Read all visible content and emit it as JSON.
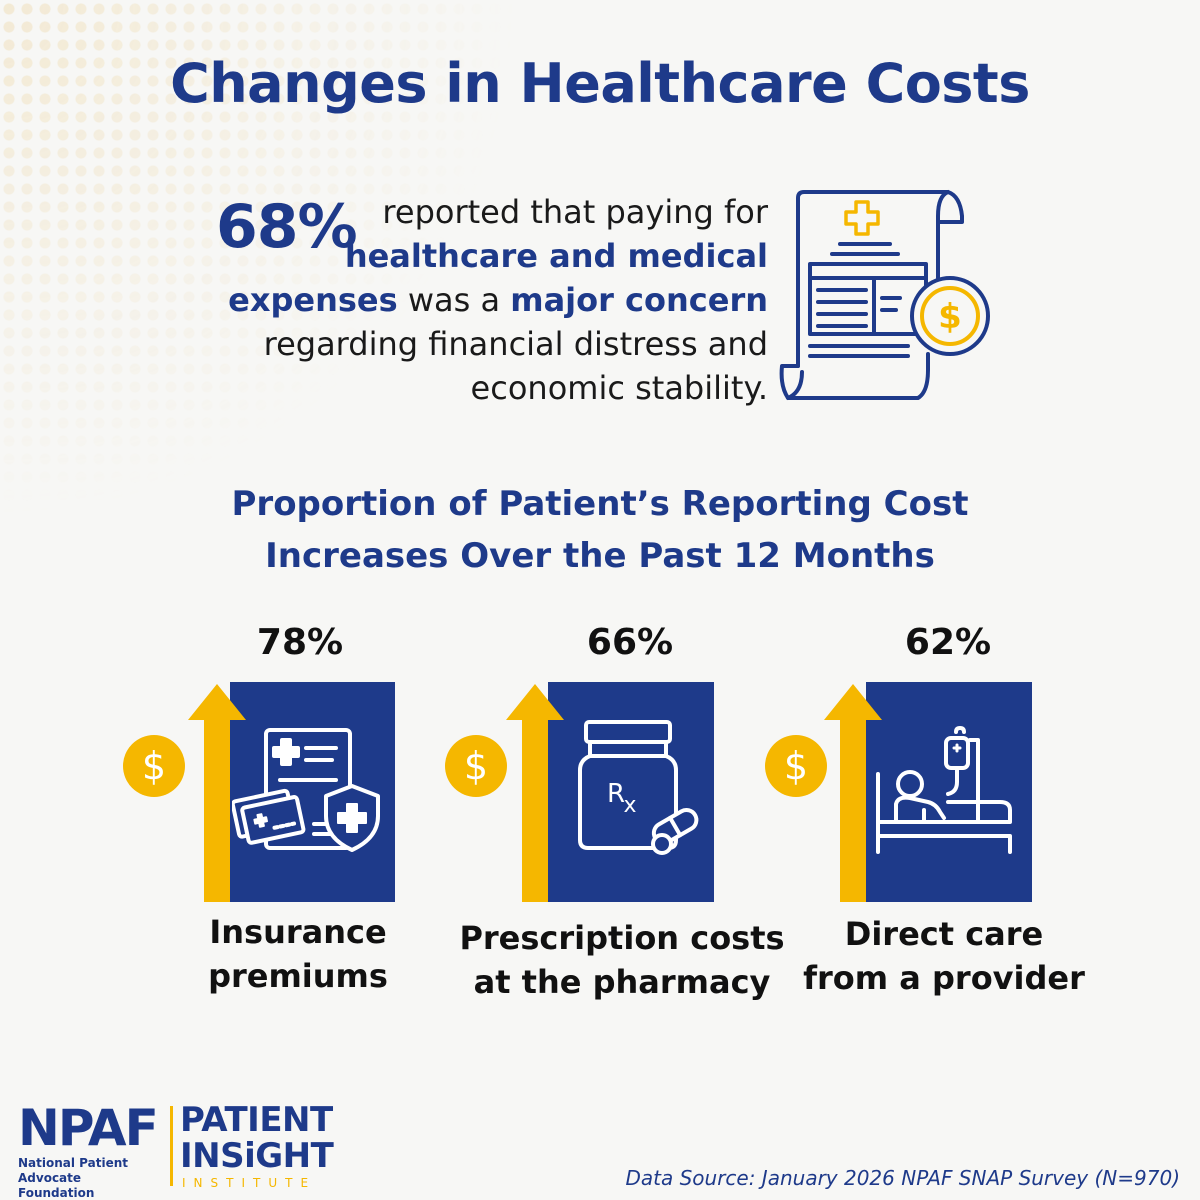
{
  "title": "Changes in Healthcare Costs",
  "headline_stat": {
    "value": "68%",
    "text_1": "reported that paying for",
    "bold_1": "healthcare and medical expenses",
    "text_2": "was a",
    "bold_2": "major concern",
    "text_3": "regarding financial distress and economic stability."
  },
  "subtitle_line1": "Proportion of Patient’s Reporting Cost",
  "subtitle_line2": "Increases Over the Past 12 Months",
  "cost_increases": [
    {
      "percent": "78%",
      "label_line1": "Insurance",
      "label_line2": "premiums",
      "icon": "insurance-documents-icon"
    },
    {
      "percent": "66%",
      "label_line1": "Prescription costs",
      "label_line2": "at the pharmacy",
      "icon": "prescription-bottle-icon"
    },
    {
      "percent": "62%",
      "label_line1": "Direct care",
      "label_line2": "from a provider",
      "icon": "hospital-bed-icon"
    }
  ],
  "logo": {
    "npaf": "NPAF",
    "npaf_sub_line1": "National Patient",
    "npaf_sub_line2": "Advocate Foundation",
    "patient": "PATIENT",
    "insight": "INSiGHT",
    "institute": "INSTITUTE"
  },
  "source": "Data Source: January 2026 NPAF SNAP Survey (N=970)",
  "colors": {
    "navy": "#1e3a8a",
    "gold": "#f5b700",
    "background": "#f7f7f5"
  }
}
